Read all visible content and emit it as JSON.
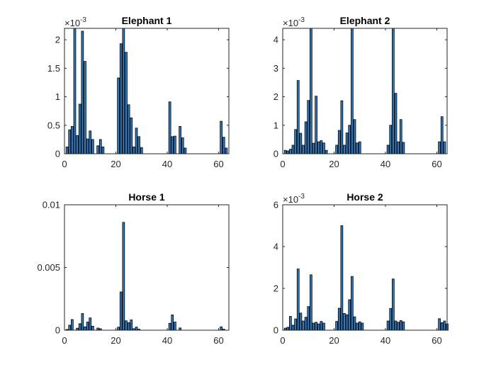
{
  "chart_data": [
    {
      "type": "bar",
      "title": "Elephant 1",
      "exponent_base": "×10",
      "exponent_power": "-3",
      "xlim": [
        0,
        64
      ],
      "ylim": [
        0,
        2.2
      ],
      "xticks": [
        0,
        20,
        40,
        60
      ],
      "yticks": [
        0,
        0.5,
        1,
        1.5,
        2
      ],
      "ytick_labels": [
        "0",
        "0.5",
        "1",
        "1.5",
        "2"
      ],
      "bar_color": "#2d7bc0",
      "bars": [
        {
          "x": 1,
          "y": 0.12
        },
        {
          "x": 2,
          "y": 0.42
        },
        {
          "x": 3,
          "y": 0.48
        },
        {
          "x": 4,
          "y": 2.2
        },
        {
          "x": 5,
          "y": 0.32
        },
        {
          "x": 6,
          "y": 0.87
        },
        {
          "x": 7,
          "y": 2.15
        },
        {
          "x": 8,
          "y": 1.62
        },
        {
          "x": 9,
          "y": 0.26
        },
        {
          "x": 10,
          "y": 0.4
        },
        {
          "x": 11,
          "y": 0.25
        },
        {
          "x": 13,
          "y": 0.14
        },
        {
          "x": 14,
          "y": 0.25
        },
        {
          "x": 15,
          "y": 0.12
        },
        {
          "x": 21,
          "y": 1.33
        },
        {
          "x": 22,
          "y": 1.93
        },
        {
          "x": 23,
          "y": 2.2
        },
        {
          "x": 24,
          "y": 1.78
        },
        {
          "x": 25,
          "y": 0.86
        },
        {
          "x": 26,
          "y": 0.63
        },
        {
          "x": 27,
          "y": 0.12
        },
        {
          "x": 28,
          "y": 0.45
        },
        {
          "x": 29,
          "y": 0.3
        },
        {
          "x": 30,
          "y": 0.11
        },
        {
          "x": 41,
          "y": 0.91
        },
        {
          "x": 42,
          "y": 0.3
        },
        {
          "x": 43,
          "y": 0.31
        },
        {
          "x": 45,
          "y": 0.48
        },
        {
          "x": 46,
          "y": 0.28
        },
        {
          "x": 47,
          "y": 0.1
        },
        {
          "x": 61,
          "y": 0.57
        },
        {
          "x": 62,
          "y": 0.29
        },
        {
          "x": 63,
          "y": 0.1
        }
      ]
    },
    {
      "type": "bar",
      "title": "Elephant 2",
      "exponent_base": "×10",
      "exponent_power": "-3",
      "xlim": [
        0,
        64
      ],
      "ylim": [
        0,
        4.4
      ],
      "xticks": [
        0,
        20,
        40,
        60
      ],
      "yticks": [
        0,
        1,
        2,
        3,
        4
      ],
      "ytick_labels": [
        "0",
        "1",
        "2",
        "3",
        "4"
      ],
      "bar_color": "#2d7bc0",
      "bars": [
        {
          "x": 1,
          "y": 0.12
        },
        {
          "x": 2,
          "y": 0.1
        },
        {
          "x": 3,
          "y": 0.16
        },
        {
          "x": 4,
          "y": 0.3
        },
        {
          "x": 5,
          "y": 0.85
        },
        {
          "x": 6,
          "y": 2.57
        },
        {
          "x": 7,
          "y": 0.72
        },
        {
          "x": 8,
          "y": 0.3
        },
        {
          "x": 9,
          "y": 1.12
        },
        {
          "x": 10,
          "y": 1.87
        },
        {
          "x": 11,
          "y": 4.4
        },
        {
          "x": 12,
          "y": 0.37
        },
        {
          "x": 13,
          "y": 2.02
        },
        {
          "x": 14,
          "y": 0.42
        },
        {
          "x": 15,
          "y": 0.46
        },
        {
          "x": 16,
          "y": 0.38
        },
        {
          "x": 17,
          "y": 0.12
        },
        {
          "x": 21,
          "y": 0.3
        },
        {
          "x": 22,
          "y": 0.82
        },
        {
          "x": 23,
          "y": 1.86
        },
        {
          "x": 24,
          "y": 0.3
        },
        {
          "x": 25,
          "y": 0.73
        },
        {
          "x": 26,
          "y": 1.0
        },
        {
          "x": 27,
          "y": 4.4
        },
        {
          "x": 28,
          "y": 1.2
        },
        {
          "x": 29,
          "y": 0.38
        },
        {
          "x": 30,
          "y": 0.42
        },
        {
          "x": 41,
          "y": 0.3
        },
        {
          "x": 42,
          "y": 1.0
        },
        {
          "x": 43,
          "y": 4.4
        },
        {
          "x": 44,
          "y": 2.12
        },
        {
          "x": 45,
          "y": 0.42
        },
        {
          "x": 46,
          "y": 1.2
        },
        {
          "x": 47,
          "y": 0.4
        },
        {
          "x": 61,
          "y": 0.42
        },
        {
          "x": 62,
          "y": 1.3
        },
        {
          "x": 63,
          "y": 0.42
        }
      ]
    },
    {
      "type": "bar",
      "title": "Horse 1",
      "exponent_base": "",
      "exponent_power": "",
      "xlim": [
        0,
        64
      ],
      "ylim": [
        0,
        0.01
      ],
      "xticks": [
        0,
        20,
        40,
        60
      ],
      "yticks": [
        0,
        0.005,
        0.01
      ],
      "ytick_labels": [
        "0",
        "0.005",
        "0.01"
      ],
      "bar_color": "#2d7bc0",
      "bars": [
        {
          "x": 1,
          "y": 6e-05
        },
        {
          "x": 2,
          "y": 0.0004
        },
        {
          "x": 3,
          "y": 0.00085
        },
        {
          "x": 5,
          "y": 0.00016
        },
        {
          "x": 6,
          "y": 0.00052
        },
        {
          "x": 7,
          "y": 0.00133
        },
        {
          "x": 8,
          "y": 0.00027
        },
        {
          "x": 9,
          "y": 0.00065
        },
        {
          "x": 10,
          "y": 0.00098
        },
        {
          "x": 11,
          "y": 0.00032
        },
        {
          "x": 13,
          "y": 0.00017
        },
        {
          "x": 14,
          "y": 0.00012
        },
        {
          "x": 21,
          "y": 0.00024
        },
        {
          "x": 22,
          "y": 0.00305
        },
        {
          "x": 23,
          "y": 0.0086
        },
        {
          "x": 24,
          "y": 0.00075
        },
        {
          "x": 25,
          "y": 0.0006
        },
        {
          "x": 26,
          "y": 0.00082
        },
        {
          "x": 27,
          "y": 0.00012
        },
        {
          "x": 28,
          "y": 0.00025
        },
        {
          "x": 29,
          "y": 8e-05
        },
        {
          "x": 41,
          "y": 0.00055
        },
        {
          "x": 42,
          "y": 0.00122
        },
        {
          "x": 43,
          "y": 0.00065
        },
        {
          "x": 45,
          "y": 0.00018
        },
        {
          "x": 61,
          "y": 0.00027
        },
        {
          "x": 62,
          "y": 8e-05
        }
      ]
    },
    {
      "type": "bar",
      "title": "Horse 2",
      "exponent_base": "×10",
      "exponent_power": "-3",
      "xlim": [
        0,
        64
      ],
      "ylim": [
        0,
        6
      ],
      "xticks": [
        0,
        20,
        40,
        60
      ],
      "yticks": [
        0,
        2,
        4,
        6
      ],
      "ytick_labels": [
        "0",
        "2",
        "4",
        "6"
      ],
      "bar_color": "#2d7bc0",
      "bars": [
        {
          "x": 1,
          "y": 0.1
        },
        {
          "x": 2,
          "y": 0.14
        },
        {
          "x": 3,
          "y": 0.66
        },
        {
          "x": 4,
          "y": 0.24
        },
        {
          "x": 5,
          "y": 0.54
        },
        {
          "x": 6,
          "y": 2.93
        },
        {
          "x": 7,
          "y": 0.82
        },
        {
          "x": 8,
          "y": 0.44
        },
        {
          "x": 9,
          "y": 0.62
        },
        {
          "x": 10,
          "y": 1.13
        },
        {
          "x": 11,
          "y": 2.65
        },
        {
          "x": 12,
          "y": 0.34
        },
        {
          "x": 13,
          "y": 0.38
        },
        {
          "x": 14,
          "y": 0.3
        },
        {
          "x": 15,
          "y": 0.42
        },
        {
          "x": 16,
          "y": 0.34
        },
        {
          "x": 21,
          "y": 0.42
        },
        {
          "x": 22,
          "y": 1.05
        },
        {
          "x": 23,
          "y": 5.0
        },
        {
          "x": 24,
          "y": 0.8
        },
        {
          "x": 25,
          "y": 0.74
        },
        {
          "x": 26,
          "y": 1.46
        },
        {
          "x": 27,
          "y": 2.57
        },
        {
          "x": 28,
          "y": 0.64
        },
        {
          "x": 29,
          "y": 0.34
        },
        {
          "x": 30,
          "y": 0.4
        },
        {
          "x": 31,
          "y": 0.34
        },
        {
          "x": 41,
          "y": 0.44
        },
        {
          "x": 42,
          "y": 1.04
        },
        {
          "x": 43,
          "y": 2.45
        },
        {
          "x": 44,
          "y": 0.44
        },
        {
          "x": 45,
          "y": 0.38
        },
        {
          "x": 46,
          "y": 0.46
        },
        {
          "x": 47,
          "y": 0.4
        },
        {
          "x": 61,
          "y": 0.55
        },
        {
          "x": 62,
          "y": 0.36
        },
        {
          "x": 63,
          "y": 0.44
        },
        {
          "x": 64,
          "y": 0.3
        }
      ]
    }
  ]
}
